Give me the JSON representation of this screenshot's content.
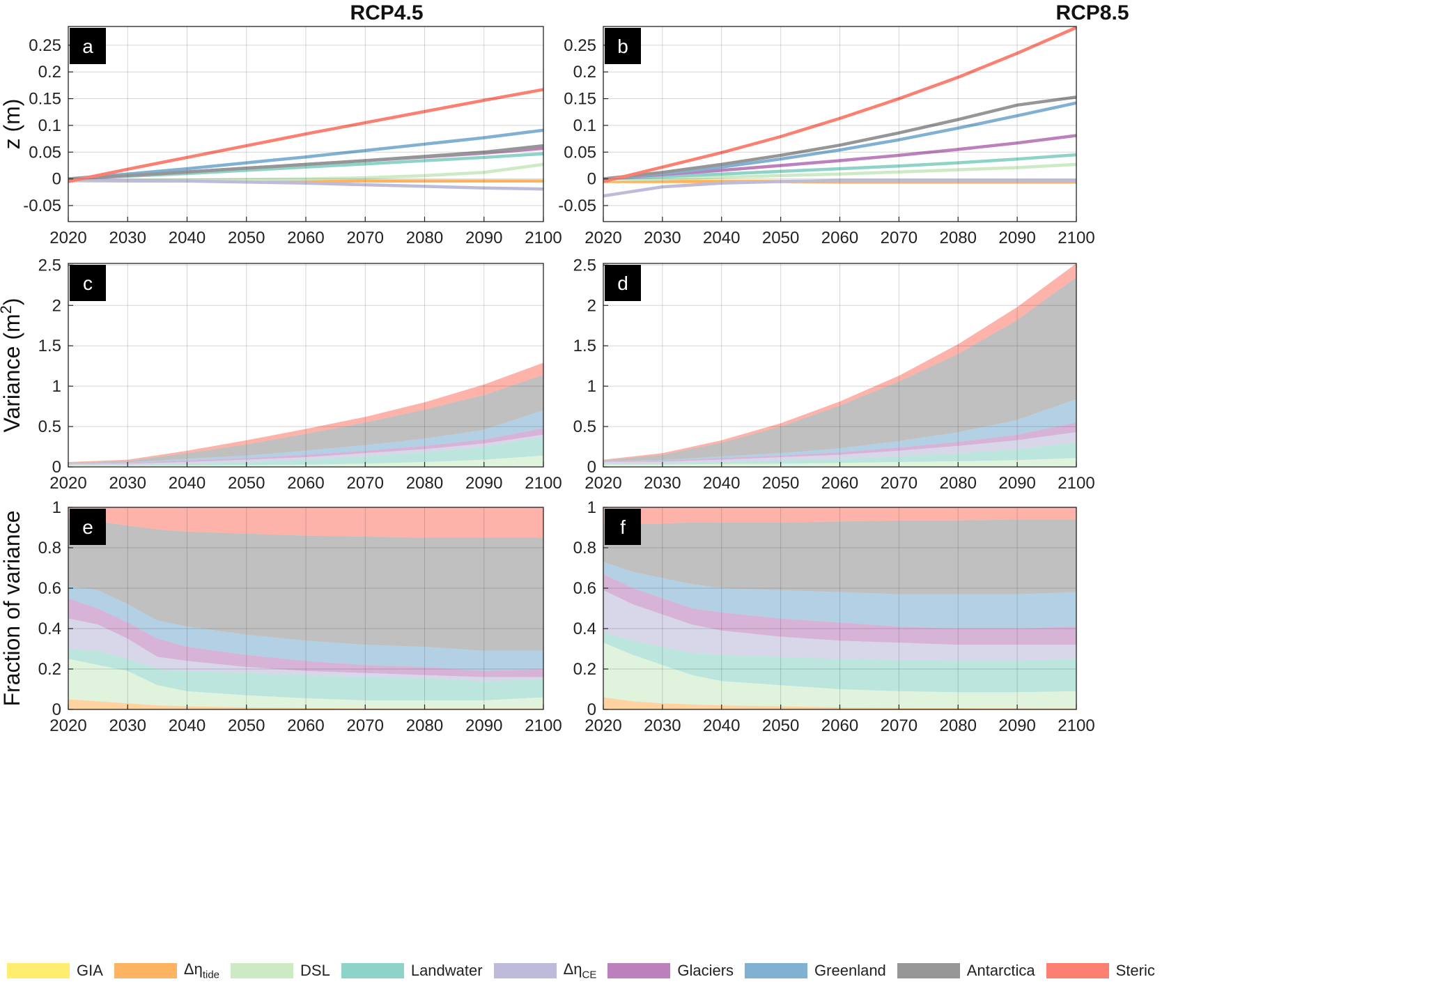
{
  "figure": {
    "column_titles": [
      "RCP4.5",
      "RCP8.5"
    ]
  },
  "legend": [
    {
      "key": "gia",
      "label": "GIA",
      "color": "#FFED6F"
    },
    {
      "key": "tide",
      "label_main": "Δη",
      "label_sub": "tide",
      "color": "#FDB462"
    },
    {
      "key": "dsl",
      "label": "DSL",
      "color": "#CCEBC5"
    },
    {
      "key": "landwater",
      "label": "Landwater",
      "color": "#8DD3C7"
    },
    {
      "key": "ce",
      "label_main": "Δη",
      "label_sub": "CE",
      "color": "#BEBADA"
    },
    {
      "key": "glaciers",
      "label": "Glaciers",
      "color": "#BC80BD"
    },
    {
      "key": "greenland",
      "label": "Greenland",
      "color": "#80B1D3"
    },
    {
      "key": "antarctica",
      "label": "Antarctica",
      "color": "#969696"
    },
    {
      "key": "steric",
      "label": "Steric",
      "color": "#FB8072"
    }
  ],
  "chart_data": [
    {
      "panel": "a",
      "type": "line",
      "scenario": "RCP4.5",
      "row": 0,
      "col": 0,
      "ylabel": "z (m)",
      "xlim": [
        2020,
        2100
      ],
      "ylim": [
        -0.08,
        0.285
      ],
      "yticks": [
        -0.05,
        0,
        0.05,
        0.1,
        0.15,
        0.2,
        0.25
      ],
      "yticklabels": [
        "-0.05",
        "0",
        "0.05",
        "0.1",
        "0.15",
        "0.2",
        "0.25"
      ],
      "xticks": [
        2020,
        2030,
        2040,
        2050,
        2060,
        2070,
        2080,
        2090,
        2100
      ],
      "xticklabels": [
        "2020",
        "2030",
        "2040",
        "2050",
        "2060",
        "2070",
        "2080",
        "2090",
        "2100"
      ],
      "grid": true,
      "x": [
        2020,
        2030,
        2040,
        2050,
        2060,
        2070,
        2080,
        2090,
        2100
      ],
      "series": [
        {
          "key": "gia",
          "values": [
            -0.004,
            -0.004,
            -0.004,
            -0.004,
            -0.004,
            -0.004,
            -0.004,
            -0.004,
            -0.004
          ]
        },
        {
          "key": "tide",
          "values": [
            -0.004,
            -0.004,
            -0.004,
            -0.004,
            -0.004,
            -0.004,
            -0.004,
            -0.004,
            -0.004
          ]
        },
        {
          "key": "dsl",
          "values": [
            -0.004,
            -0.003,
            -0.002,
            -0.001,
            0,
            0.002,
            0.006,
            0.012,
            0.027
          ]
        },
        {
          "key": "landwater",
          "values": [
            0,
            0.005,
            0.01,
            0.016,
            0.022,
            0.028,
            0.034,
            0.04,
            0.047
          ]
        },
        {
          "key": "ce",
          "values": [
            -0.002,
            -0.003,
            -0.004,
            -0.006,
            -0.008,
            -0.011,
            -0.014,
            -0.017,
            -0.019
          ]
        },
        {
          "key": "glaciers",
          "values": [
            0,
            0.006,
            0.013,
            0.02,
            0.027,
            0.034,
            0.041,
            0.048,
            0.057
          ]
        },
        {
          "key": "greenland",
          "values": [
            0,
            0.009,
            0.019,
            0.03,
            0.041,
            0.053,
            0.065,
            0.077,
            0.091
          ]
        },
        {
          "key": "antarctica",
          "values": [
            0,
            0.006,
            0.013,
            0.02,
            0.027,
            0.034,
            0.042,
            0.05,
            0.062
          ]
        },
        {
          "key": "steric",
          "values": [
            -0.005,
            0.018,
            0.04,
            0.062,
            0.084,
            0.105,
            0.126,
            0.147,
            0.167
          ]
        }
      ]
    },
    {
      "panel": "b",
      "type": "line",
      "scenario": "RCP8.5",
      "row": 0,
      "col": 1,
      "ylabel": "",
      "xlim": [
        2020,
        2100
      ],
      "ylim": [
        -0.08,
        0.285
      ],
      "yticks": [
        -0.05,
        0,
        0.05,
        0.1,
        0.15,
        0.2,
        0.25
      ],
      "yticklabels": [
        "-0.05",
        "0",
        "0.05",
        "0.1",
        "0.15",
        "0.2",
        "0.25"
      ],
      "xticks": [
        2020,
        2030,
        2040,
        2050,
        2060,
        2070,
        2080,
        2090,
        2100
      ],
      "xticklabels": [
        "2020",
        "2030",
        "2040",
        "2050",
        "2060",
        "2070",
        "2080",
        "2090",
        "2100"
      ],
      "grid": true,
      "x": [
        2020,
        2030,
        2040,
        2050,
        2060,
        2070,
        2080,
        2090,
        2100
      ],
      "series": [
        {
          "key": "gia",
          "values": [
            -0.004,
            -0.004,
            -0.004,
            -0.004,
            -0.004,
            -0.004,
            -0.004,
            -0.004,
            -0.004
          ]
        },
        {
          "key": "tide",
          "values": [
            -0.005,
            -0.005,
            -0.005,
            -0.005,
            -0.006,
            -0.006,
            -0.006,
            -0.006,
            -0.006
          ]
        },
        {
          "key": "dsl",
          "values": [
            -0.002,
            0,
            0.003,
            0.006,
            0.009,
            0.013,
            0.017,
            0.021,
            0.027
          ]
        },
        {
          "key": "landwater",
          "values": [
            0,
            0.004,
            0.009,
            0.014,
            0.019,
            0.024,
            0.03,
            0.037,
            0.045
          ]
        },
        {
          "key": "ce",
          "values": [
            -0.032,
            -0.015,
            -0.008,
            -0.005,
            -0.003,
            -0.003,
            -0.003,
            -0.003,
            -0.003
          ]
        },
        {
          "key": "glaciers",
          "values": [
            0,
            0.008,
            0.016,
            0.025,
            0.034,
            0.044,
            0.055,
            0.067,
            0.081
          ]
        },
        {
          "key": "greenland",
          "values": [
            0,
            0.01,
            0.022,
            0.037,
            0.054,
            0.073,
            0.095,
            0.118,
            0.142
          ]
        },
        {
          "key": "antarctica",
          "values": [
            0,
            0.012,
            0.027,
            0.044,
            0.063,
            0.086,
            0.111,
            0.138,
            0.153
          ]
        },
        {
          "key": "steric",
          "values": [
            -0.005,
            0.022,
            0.049,
            0.079,
            0.113,
            0.15,
            0.19,
            0.235,
            0.283
          ]
        }
      ]
    },
    {
      "panel": "c",
      "type": "area",
      "scenario": "RCP4.5",
      "row": 1,
      "col": 0,
      "ylabel": "Variance (m",
      "ylabel_sup": "2",
      "ylabel_end": ")",
      "xlim": [
        2020,
        2100
      ],
      "ylim": [
        0,
        2.52
      ],
      "yticks": [
        0,
        0.5,
        1,
        1.5,
        2,
        2.5
      ],
      "yticklabels": [
        "0",
        "0.5",
        "1",
        "1.5",
        "2",
        "2.5"
      ],
      "xticks": [
        2020,
        2030,
        2040,
        2050,
        2060,
        2070,
        2080,
        2090,
        2100
      ],
      "xticklabels": [
        "2020",
        "2030",
        "2040",
        "2050",
        "2060",
        "2070",
        "2080",
        "2090",
        "2100"
      ],
      "grid": true,
      "x": [
        2020,
        2030,
        2040,
        2050,
        2060,
        2070,
        2080,
        2090,
        2100
      ],
      "stack_order": [
        "gia",
        "tide",
        "dsl",
        "landwater",
        "ce",
        "glaciers",
        "greenland",
        "antarctica",
        "steric"
      ],
      "cumulative": {
        "gia": [
          0,
          0,
          0,
          0,
          0,
          0,
          0,
          0,
          0
        ],
        "tide": [
          0.003,
          0.003,
          0.003,
          0.003,
          0.003,
          0.003,
          0.003,
          0.003,
          0.003
        ],
        "dsl": [
          0.015,
          0.015,
          0.018,
          0.022,
          0.028,
          0.04,
          0.06,
          0.09,
          0.14
        ],
        "landwater": [
          0.02,
          0.025,
          0.04,
          0.06,
          0.09,
          0.13,
          0.18,
          0.25,
          0.37
        ],
        "ce": [
          0.035,
          0.04,
          0.06,
          0.09,
          0.12,
          0.17,
          0.22,
          0.29,
          0.4
        ],
        "glaciers": [
          0.04,
          0.05,
          0.08,
          0.11,
          0.15,
          0.2,
          0.26,
          0.34,
          0.48
        ],
        "greenland": [
          0.04,
          0.055,
          0.1,
          0.14,
          0.2,
          0.27,
          0.35,
          0.46,
          0.7
        ],
        "antarctica": [
          0.05,
          0.075,
          0.17,
          0.28,
          0.41,
          0.55,
          0.71,
          0.89,
          1.14
        ],
        "steric": [
          0.06,
          0.09,
          0.2,
          0.33,
          0.47,
          0.62,
          0.8,
          1.02,
          1.29
        ]
      }
    },
    {
      "panel": "d",
      "type": "area",
      "scenario": "RCP8.5",
      "row": 1,
      "col": 1,
      "ylabel": "",
      "xlim": [
        2020,
        2100
      ],
      "ylim": [
        0,
        2.52
      ],
      "yticks": [
        0,
        0.5,
        1,
        1.5,
        2,
        2.5
      ],
      "yticklabels": [
        "0",
        "0.5",
        "1",
        "1.5",
        "2",
        "2.5"
      ],
      "xticks": [
        2020,
        2030,
        2040,
        2050,
        2060,
        2070,
        2080,
        2090,
        2100
      ],
      "xticklabels": [
        "2020",
        "2030",
        "2040",
        "2050",
        "2060",
        "2070",
        "2080",
        "2090",
        "2100"
      ],
      "grid": true,
      "x": [
        2020,
        2030,
        2040,
        2050,
        2060,
        2070,
        2080,
        2090,
        2100
      ],
      "stack_order": [
        "gia",
        "tide",
        "dsl",
        "landwater",
        "ce",
        "glaciers",
        "greenland",
        "antarctica",
        "steric"
      ],
      "cumulative": {
        "gia": [
          0,
          0,
          0,
          0,
          0,
          0,
          0,
          0,
          0
        ],
        "tide": [
          0.004,
          0.004,
          0.004,
          0.004,
          0.004,
          0.004,
          0.004,
          0.004,
          0.004
        ],
        "dsl": [
          0.03,
          0.03,
          0.035,
          0.04,
          0.05,
          0.06,
          0.07,
          0.085,
          0.11
        ],
        "landwater": [
          0.035,
          0.045,
          0.06,
          0.08,
          0.1,
          0.13,
          0.17,
          0.22,
          0.3
        ],
        "ce": [
          0.06,
          0.065,
          0.09,
          0.12,
          0.15,
          0.2,
          0.26,
          0.33,
          0.43
        ],
        "glaciers": [
          0.065,
          0.075,
          0.11,
          0.14,
          0.18,
          0.24,
          0.31,
          0.4,
          0.55
        ],
        "greenland": [
          0.07,
          0.085,
          0.13,
          0.17,
          0.23,
          0.32,
          0.43,
          0.58,
          0.84
        ],
        "antarctica": [
          0.08,
          0.15,
          0.3,
          0.5,
          0.76,
          1.06,
          1.4,
          1.82,
          2.35
        ],
        "steric": [
          0.09,
          0.17,
          0.33,
          0.54,
          0.81,
          1.13,
          1.52,
          1.98,
          2.52
        ]
      }
    },
    {
      "panel": "e",
      "type": "area",
      "scenario": "RCP4.5",
      "row": 2,
      "col": 0,
      "ylabel": "Fraction of variance",
      "xlim": [
        2020,
        2100
      ],
      "ylim": [
        0,
        1
      ],
      "yticks": [
        0,
        0.2,
        0.4,
        0.6,
        0.8,
        1
      ],
      "yticklabels": [
        "0",
        "0.2",
        "0.4",
        "0.6",
        "0.8",
        "1"
      ],
      "xticks": [
        2020,
        2030,
        2040,
        2050,
        2060,
        2070,
        2080,
        2090,
        2100
      ],
      "xticklabels": [
        "2020",
        "2030",
        "2040",
        "2050",
        "2060",
        "2070",
        "2080",
        "2090",
        "2100"
      ],
      "grid": true,
      "x": [
        2020,
        2025,
        2030,
        2035,
        2040,
        2050,
        2060,
        2070,
        2080,
        2090,
        2100
      ],
      "stack_order": [
        "gia",
        "tide",
        "dsl",
        "landwater",
        "ce",
        "glaciers",
        "greenland",
        "antarctica",
        "steric"
      ],
      "cumulative": {
        "gia": [
          0,
          0,
          0,
          0,
          0,
          0,
          0,
          0,
          0,
          0,
          0
        ],
        "tide": [
          0.05,
          0.04,
          0.03,
          0.02,
          0.015,
          0.01,
          0.008,
          0.006,
          0.005,
          0.005,
          0.005
        ],
        "dsl": [
          0.25,
          0.22,
          0.19,
          0.12,
          0.09,
          0.07,
          0.055,
          0.045,
          0.045,
          0.045,
          0.06
        ],
        "landwater": [
          0.3,
          0.29,
          0.25,
          0.2,
          0.19,
          0.18,
          0.17,
          0.16,
          0.155,
          0.14,
          0.15
        ],
        "ce": [
          0.45,
          0.42,
          0.35,
          0.26,
          0.24,
          0.21,
          0.19,
          0.18,
          0.17,
          0.16,
          0.16
        ],
        "glaciers": [
          0.55,
          0.5,
          0.43,
          0.35,
          0.31,
          0.27,
          0.24,
          0.22,
          0.21,
          0.19,
          0.2
        ],
        "greenland": [
          0.61,
          0.59,
          0.52,
          0.44,
          0.41,
          0.37,
          0.34,
          0.32,
          0.31,
          0.29,
          0.29
        ],
        "antarctica": [
          0.95,
          0.93,
          0.91,
          0.89,
          0.88,
          0.87,
          0.86,
          0.855,
          0.85,
          0.85,
          0.85
        ],
        "steric": [
          1,
          1,
          1,
          1,
          1,
          1,
          1,
          1,
          1,
          1,
          1
        ]
      }
    },
    {
      "panel": "f",
      "type": "area",
      "scenario": "RCP8.5",
      "row": 2,
      "col": 1,
      "ylabel": "",
      "xlim": [
        2020,
        2100
      ],
      "ylim": [
        0,
        1
      ],
      "yticks": [
        0,
        0.2,
        0.4,
        0.6,
        0.8,
        1
      ],
      "yticklabels": [
        "0",
        "0.2",
        "0.4",
        "0.6",
        "0.8",
        "1"
      ],
      "xticks": [
        2020,
        2030,
        2040,
        2050,
        2060,
        2070,
        2080,
        2090,
        2100
      ],
      "xticklabels": [
        "2020",
        "2030",
        "2040",
        "2050",
        "2060",
        "2070",
        "2080",
        "2090",
        "2100"
      ],
      "grid": true,
      "x": [
        2020,
        2025,
        2030,
        2035,
        2040,
        2050,
        2060,
        2070,
        2080,
        2090,
        2100
      ],
      "stack_order": [
        "gia",
        "tide",
        "dsl",
        "landwater",
        "ce",
        "glaciers",
        "greenland",
        "antarctica",
        "steric"
      ],
      "cumulative": {
        "gia": [
          0,
          0,
          0,
          0,
          0,
          0,
          0,
          0,
          0,
          0,
          0
        ],
        "tide": [
          0.06,
          0.04,
          0.03,
          0.025,
          0.02,
          0.015,
          0.01,
          0.008,
          0.007,
          0.006,
          0.005
        ],
        "dsl": [
          0.33,
          0.27,
          0.22,
          0.17,
          0.14,
          0.12,
          0.1,
          0.09,
          0.085,
          0.085,
          0.09
        ],
        "landwater": [
          0.38,
          0.34,
          0.31,
          0.28,
          0.27,
          0.26,
          0.25,
          0.245,
          0.24,
          0.24,
          0.25
        ],
        "ce": [
          0.59,
          0.52,
          0.47,
          0.42,
          0.39,
          0.36,
          0.34,
          0.33,
          0.32,
          0.32,
          0.32
        ],
        "glaciers": [
          0.67,
          0.6,
          0.55,
          0.5,
          0.48,
          0.45,
          0.43,
          0.41,
          0.4,
          0.4,
          0.41
        ],
        "greenland": [
          0.73,
          0.68,
          0.65,
          0.62,
          0.6,
          0.59,
          0.58,
          0.57,
          0.57,
          0.57,
          0.58
        ],
        "antarctica": [
          0.91,
          0.92,
          0.92,
          0.925,
          0.925,
          0.925,
          0.93,
          0.935,
          0.935,
          0.94,
          0.94
        ],
        "steric": [
          1,
          1,
          1,
          1,
          1,
          1,
          1,
          1,
          1,
          1,
          1
        ]
      }
    }
  ]
}
